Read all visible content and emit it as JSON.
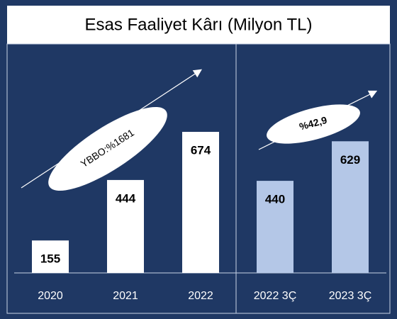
{
  "chart_data": {
    "type": "bar",
    "title": "Esas Faaliyet Kârı (Milyon TL)",
    "categories": [
      "2020",
      "2021",
      "2022",
      "2022 3Ç",
      "2023 3Ç"
    ],
    "values": [
      155,
      444,
      674,
      440,
      629
    ],
    "colors": [
      "#ffffff",
      "#ffffff",
      "#ffffff",
      "#b4c7e7",
      "#b4c7e7"
    ],
    "annotations": [
      "YBBO:%1681",
      "%42,9"
    ]
  }
}
